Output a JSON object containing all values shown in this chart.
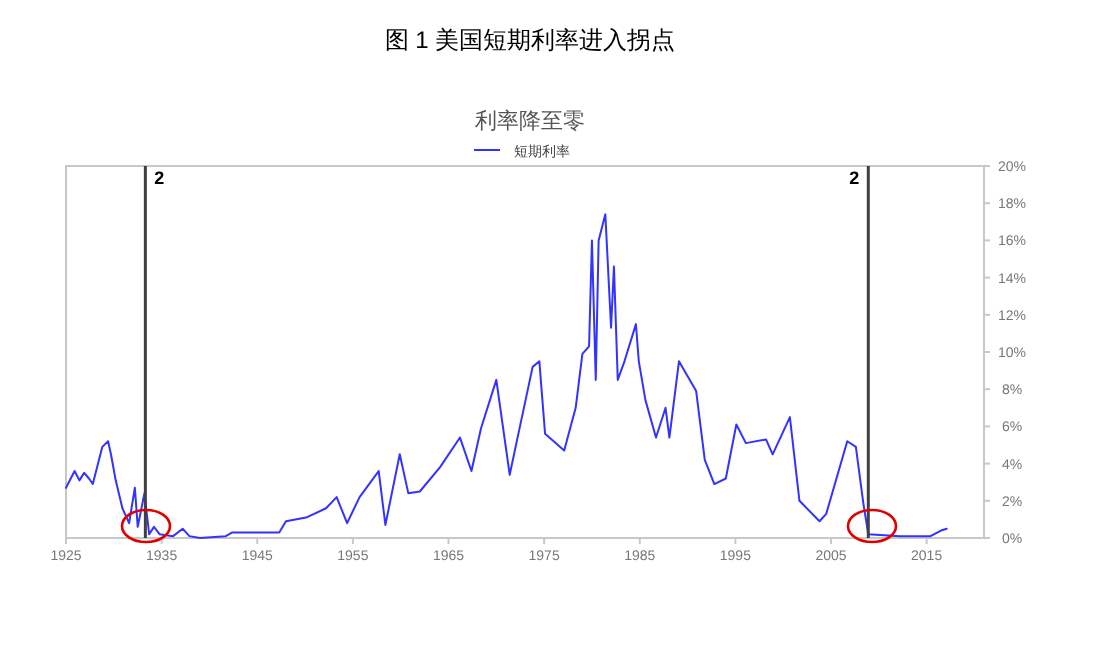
{
  "chart_data": {
    "type": "line",
    "title": "图 1 美国短期利率进入拐点",
    "subtitle": "利率降至零",
    "series": [
      {
        "name": "短期利率",
        "color": "#3333ff",
        "x": [
          1925,
          1925.9,
          1926.4,
          1926.9,
          1927.4,
          1927.8,
          1928.8,
          1929.4,
          1929.7,
          1930.2,
          1930.9,
          1931.6,
          1932.2,
          1932.5,
          1933.2,
          1933.7,
          1934.2,
          1934.8,
          1936.2,
          1937.2,
          1937.9,
          1939,
          1941.7,
          1942.4,
          1947.3,
          1948,
          1950.1,
          1952.2,
          1953.3,
          1954.4,
          1955.7,
          1957.7,
          1958.4,
          1959.9,
          1960.8,
          1962,
          1964.1,
          1966.2,
          1967.4,
          1968.4,
          1970,
          1971.4,
          1972.1,
          1973.8,
          1974.5,
          1975.1,
          1977.1,
          1978.3,
          1979,
          1979.7,
          1980,
          1980.4,
          1980.7,
          1981.4,
          1982,
          1982.3,
          1982.7,
          1983.4,
          1984.6,
          1984.9,
          1985.6,
          1986.7,
          1987.7,
          1988.1,
          1989.1,
          1990.9,
          1991.8,
          1992.8,
          1994,
          1995.1,
          1996.1,
          1998.2,
          1998.9,
          2000.7,
          2001.7,
          2003.8,
          2004.5,
          2006.7,
          2007.6,
          2008.4,
          2008.9,
          2012.2,
          2015.4,
          2016.5,
          2017.1
        ],
        "values": [
          2.7,
          3.6,
          3.1,
          3.5,
          3.2,
          2.9,
          4.9,
          5.2,
          4.5,
          3.1,
          1.6,
          0.8,
          2.7,
          0.6,
          2.4,
          0.2,
          0.6,
          0.2,
          0.1,
          0.5,
          0.1,
          0.0,
          0.1,
          0.3,
          0.3,
          0.9,
          1.1,
          1.6,
          2.2,
          0.8,
          2.2,
          3.6,
          0.7,
          4.5,
          2.4,
          2.5,
          3.8,
          5.4,
          3.6,
          5.9,
          8.5,
          3.4,
          5.1,
          9.2,
          9.5,
          5.6,
          4.7,
          7.0,
          9.9,
          10.3,
          16.0,
          8.5,
          16.0,
          17.4,
          11.3,
          14.6,
          8.5,
          9.5,
          11.5,
          9.5,
          7.4,
          5.4,
          7.0,
          5.4,
          9.5,
          7.9,
          4.2,
          2.9,
          3.2,
          6.1,
          5.1,
          5.3,
          4.5,
          6.5,
          2.0,
          0.9,
          1.3,
          5.2,
          4.9,
          1.8,
          0.2,
          0.1,
          0.1,
          0.4,
          0.5
        ]
      }
    ],
    "xlim": [
      1925,
      2021
    ],
    "xticks": [
      1925,
      1935,
      1945,
      1955,
      1965,
      1975,
      1985,
      1995,
      2005,
      2015
    ],
    "ylim": [
      0,
      20
    ],
    "yticks": [
      {
        "value": 0,
        "label": "0%"
      },
      {
        "value": 2,
        "label": "2%"
      },
      {
        "value": 4,
        "label": "4%"
      },
      {
        "value": 6,
        "label": "6%"
      },
      {
        "value": 8,
        "label": "8%"
      },
      {
        "value": 10,
        "label": "10%"
      },
      {
        "value": 12,
        "label": "12%"
      },
      {
        "value": 14,
        "label": "14%"
      },
      {
        "value": 16,
        "label": "16%"
      },
      {
        "value": 18,
        "label": "18%"
      },
      {
        "value": 20,
        "label": "20%"
      }
    ],
    "ref_lines": [
      {
        "axis": "x",
        "value": 1933.3,
        "color": "#404040"
      },
      {
        "axis": "x",
        "value": 2008.9,
        "color": "#404040"
      }
    ],
    "annotations": [
      "2",
      "2"
    ],
    "legend": "top",
    "grid": false
  }
}
